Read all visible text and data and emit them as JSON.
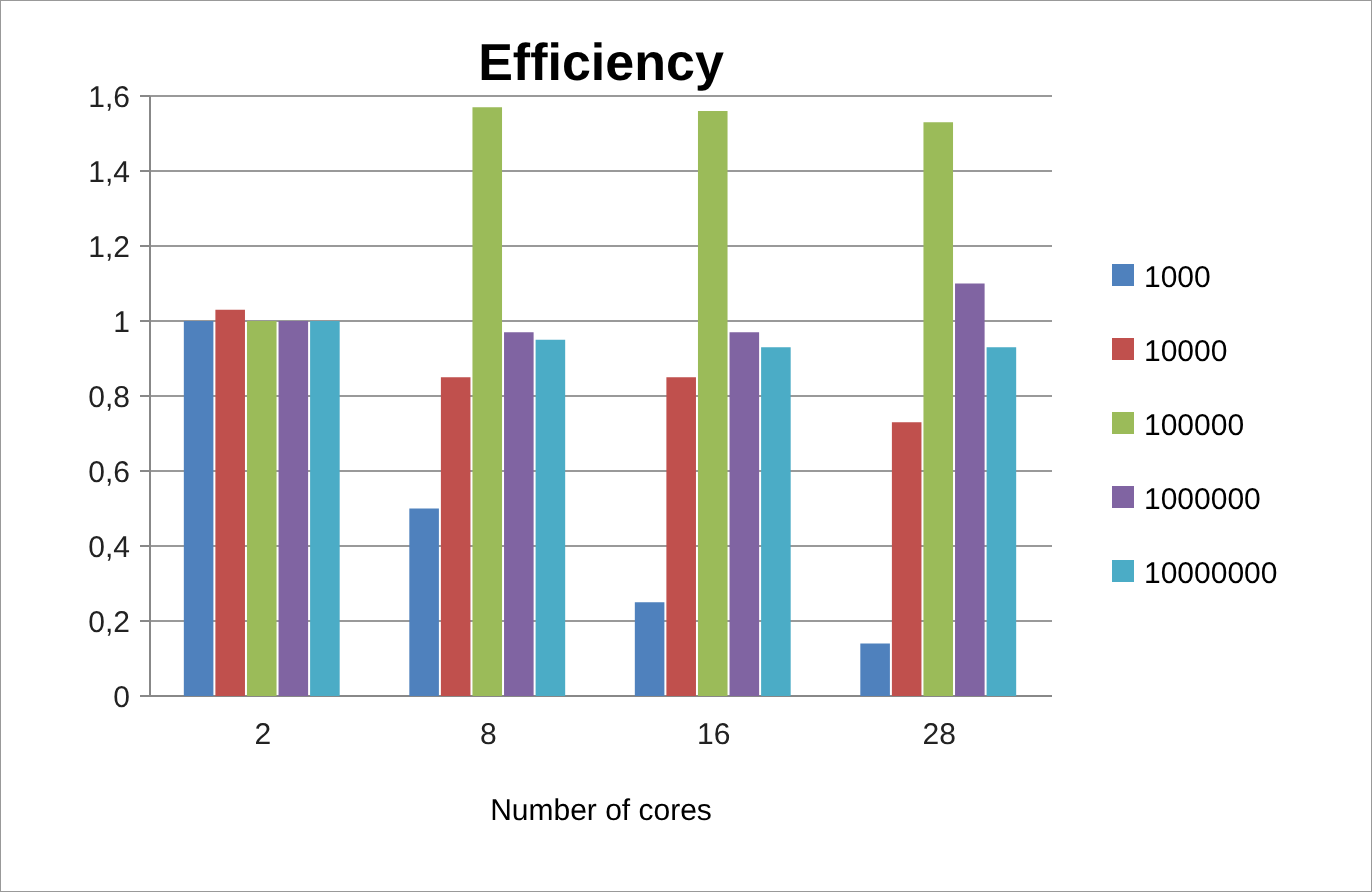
{
  "chart_data": {
    "type": "bar",
    "title": "Efficiency",
    "xlabel": "Number of cores",
    "categories": [
      "2",
      "8",
      "16",
      "28"
    ],
    "series": [
      {
        "name": "1000",
        "color": "#4f81bd",
        "values": [
          1,
          0.5,
          0.25,
          0.14
        ]
      },
      {
        "name": "10000",
        "color": "#c0504d",
        "values": [
          1.03,
          0.85,
          0.85,
          0.73
        ]
      },
      {
        "name": "100000",
        "color": "#9bbb59",
        "values": [
          1,
          1.57,
          1.56,
          1.53
        ]
      },
      {
        "name": "1000000",
        "color": "#8064a2",
        "values": [
          1,
          0.97,
          0.97,
          1.1
        ]
      },
      {
        "name": "10000000",
        "color": "#4bacc6",
        "values": [
          1,
          0.95,
          0.93,
          0.93
        ]
      }
    ],
    "ylim": [
      0,
      1.6
    ],
    "yticks": [
      0,
      {
        "value": 0.2,
        "label": "0,2"
      },
      {
        "value": 0.4,
        "label": "0,4"
      },
      {
        "value": 0.6,
        "label": "0,6"
      },
      {
        "value": 0.8,
        "label": "0,8"
      },
      1,
      {
        "value": 1.2,
        "label": "1,2"
      },
      {
        "value": 1.4,
        "label": "1,4"
      },
      {
        "value": 1.6,
        "label": "1,6"
      }
    ],
    "grid": "y",
    "legend": "right"
  }
}
